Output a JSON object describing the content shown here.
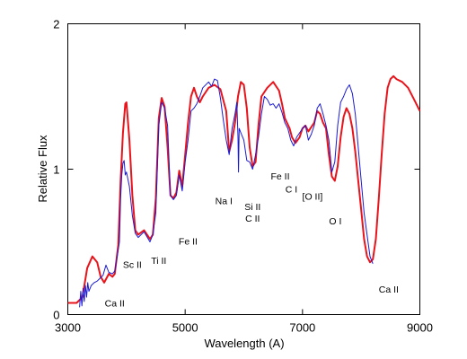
{
  "chart_data": {
    "type": "line",
    "title": "",
    "xlabel": "Wavelength (A)",
    "ylabel": "Relative Flux",
    "xlim": [
      3000,
      9000
    ],
    "ylim": [
      0,
      2
    ],
    "grid": false,
    "x_ticks": [
      {
        "value": 3000,
        "label": "3000"
      },
      {
        "value": 5000,
        "label": "5000"
      },
      {
        "value": 7000,
        "label": "7000"
      },
      {
        "value": 9000,
        "label": "9000"
      }
    ],
    "y_ticks": [
      {
        "value": 0,
        "label": "0"
      },
      {
        "value": 1,
        "label": "1"
      },
      {
        "value": 2,
        "label": "2"
      }
    ],
    "series": [
      {
        "color": "#e8141c",
        "points": [
          [
            3000,
            0.08
          ],
          [
            3150,
            0.08
          ],
          [
            3250,
            0.12
          ],
          [
            3330,
            0.32
          ],
          [
            3420,
            0.4
          ],
          [
            3500,
            0.36
          ],
          [
            3560,
            0.26
          ],
          [
            3620,
            0.22
          ],
          [
            3700,
            0.28
          ],
          [
            3760,
            0.26
          ],
          [
            3800,
            0.28
          ],
          [
            3860,
            0.48
          ],
          [
            3900,
            0.92
          ],
          [
            3940,
            1.25
          ],
          [
            3980,
            1.45
          ],
          [
            4000,
            1.46
          ],
          [
            4050,
            1.2
          ],
          [
            4100,
            0.82
          ],
          [
            4150,
            0.58
          ],
          [
            4200,
            0.55
          ],
          [
            4300,
            0.58
          ],
          [
            4400,
            0.52
          ],
          [
            4450,
            0.55
          ],
          [
            4500,
            0.8
          ],
          [
            4550,
            1.35
          ],
          [
            4600,
            1.49
          ],
          [
            4650,
            1.43
          ],
          [
            4700,
            1.15
          ],
          [
            4750,
            0.82
          ],
          [
            4800,
            0.8
          ],
          [
            4850,
            0.84
          ],
          [
            4900,
            0.99
          ],
          [
            4950,
            0.88
          ],
          [
            5000,
            1.1
          ],
          [
            5050,
            1.32
          ],
          [
            5100,
            1.5
          ],
          [
            5150,
            1.56
          ],
          [
            5200,
            1.5
          ],
          [
            5250,
            1.46
          ],
          [
            5300,
            1.5
          ],
          [
            5400,
            1.56
          ],
          [
            5500,
            1.58
          ],
          [
            5600,
            1.55
          ],
          [
            5700,
            1.4
          ],
          [
            5750,
            1.12
          ],
          [
            5800,
            1.2
          ],
          [
            5850,
            1.32
          ],
          [
            5900,
            1.5
          ],
          [
            5950,
            1.6
          ],
          [
            6000,
            1.58
          ],
          [
            6050,
            1.42
          ],
          [
            6100,
            1.15
          ],
          [
            6150,
            1.02
          ],
          [
            6200,
            1.05
          ],
          [
            6250,
            1.3
          ],
          [
            6300,
            1.5
          ],
          [
            6400,
            1.56
          ],
          [
            6500,
            1.6
          ],
          [
            6600,
            1.54
          ],
          [
            6650,
            1.45
          ],
          [
            6700,
            1.35
          ],
          [
            6780,
            1.28
          ],
          [
            6820,
            1.22
          ],
          [
            6880,
            1.18
          ],
          [
            6950,
            1.22
          ],
          [
            7000,
            1.28
          ],
          [
            7050,
            1.3
          ],
          [
            7100,
            1.26
          ],
          [
            7200,
            1.32
          ],
          [
            7250,
            1.4
          ],
          [
            7300,
            1.38
          ],
          [
            7350,
            1.32
          ],
          [
            7400,
            1.28
          ],
          [
            7450,
            1.1
          ],
          [
            7500,
            0.95
          ],
          [
            7550,
            0.92
          ],
          [
            7600,
            1.02
          ],
          [
            7650,
            1.22
          ],
          [
            7700,
            1.36
          ],
          [
            7750,
            1.42
          ],
          [
            7800,
            1.38
          ],
          [
            7850,
            1.28
          ],
          [
            7900,
            1.12
          ],
          [
            7950,
            0.92
          ],
          [
            8000,
            0.72
          ],
          [
            8050,
            0.52
          ],
          [
            8100,
            0.4
          ],
          [
            8150,
            0.36
          ],
          [
            8200,
            0.38
          ],
          [
            8250,
            0.52
          ],
          [
            8300,
            0.8
          ],
          [
            8350,
            1.1
          ],
          [
            8400,
            1.38
          ],
          [
            8450,
            1.56
          ],
          [
            8500,
            1.62
          ],
          [
            8550,
            1.64
          ],
          [
            8600,
            1.62
          ],
          [
            8700,
            1.6
          ],
          [
            8800,
            1.56
          ],
          [
            8900,
            1.48
          ],
          [
            9000,
            1.4
          ]
        ]
      },
      {
        "color": "#1a1ad4",
        "points": [
          [
            3200,
            0.05
          ],
          [
            3220,
            0.16
          ],
          [
            3240,
            0.06
          ],
          [
            3260,
            0.18
          ],
          [
            3280,
            0.09
          ],
          [
            3300,
            0.2
          ],
          [
            3320,
            0.12
          ],
          [
            3340,
            0.22
          ],
          [
            3360,
            0.16
          ],
          [
            3400,
            0.2
          ],
          [
            3450,
            0.22
          ],
          [
            3500,
            0.23
          ],
          [
            3550,
            0.25
          ],
          [
            3600,
            0.27
          ],
          [
            3650,
            0.34
          ],
          [
            3700,
            0.29
          ],
          [
            3760,
            0.28
          ],
          [
            3800,
            0.3
          ],
          [
            3850,
            0.42
          ],
          [
            3880,
            0.5
          ],
          [
            3900,
            0.8
          ],
          [
            3920,
            0.96
          ],
          [
            3940,
            1.04
          ],
          [
            3960,
            1.06
          ],
          [
            3980,
            0.96
          ],
          [
            4000,
            0.98
          ],
          [
            4050,
            0.88
          ],
          [
            4100,
            0.68
          ],
          [
            4150,
            0.56
          ],
          [
            4200,
            0.53
          ],
          [
            4300,
            0.57
          ],
          [
            4400,
            0.5
          ],
          [
            4450,
            0.55
          ],
          [
            4500,
            0.7
          ],
          [
            4550,
            1.3
          ],
          [
            4600,
            1.46
          ],
          [
            4650,
            1.42
          ],
          [
            4700,
            1.3
          ],
          [
            4750,
            0.82
          ],
          [
            4800,
            0.79
          ],
          [
            4850,
            0.82
          ],
          [
            4900,
            0.96
          ],
          [
            4950,
            0.85
          ],
          [
            5000,
            1.05
          ],
          [
            5050,
            1.2
          ],
          [
            5100,
            1.4
          ],
          [
            5150,
            1.42
          ],
          [
            5200,
            1.45
          ],
          [
            5250,
            1.5
          ],
          [
            5300,
            1.56
          ],
          [
            5400,
            1.6
          ],
          [
            5450,
            1.57
          ],
          [
            5500,
            1.62
          ],
          [
            5550,
            1.61
          ],
          [
            5600,
            1.49
          ],
          [
            5650,
            1.34
          ],
          [
            5700,
            1.2
          ],
          [
            5750,
            1.1
          ],
          [
            5800,
            1.28
          ],
          [
            5850,
            1.38
          ],
          [
            5880,
            1.46
          ],
          [
            5900,
            1.22
          ],
          [
            5910,
            0.98
          ],
          [
            5920,
            1.28
          ],
          [
            5950,
            1.25
          ],
          [
            6000,
            1.2
          ],
          [
            6050,
            1.06
          ],
          [
            6100,
            1.05
          ],
          [
            6150,
            1.0
          ],
          [
            6200,
            1.1
          ],
          [
            6250,
            1.22
          ],
          [
            6300,
            1.38
          ],
          [
            6350,
            1.5
          ],
          [
            6400,
            1.48
          ],
          [
            6450,
            1.44
          ],
          [
            6500,
            1.45
          ],
          [
            6550,
            1.42
          ],
          [
            6600,
            1.45
          ],
          [
            6650,
            1.39
          ],
          [
            6700,
            1.32
          ],
          [
            6750,
            1.28
          ],
          [
            6800,
            1.2
          ],
          [
            6850,
            1.16
          ],
          [
            6900,
            1.22
          ],
          [
            6950,
            1.25
          ],
          [
            7000,
            1.28
          ],
          [
            7050,
            1.3
          ],
          [
            7100,
            1.2
          ],
          [
            7150,
            1.24
          ],
          [
            7200,
            1.3
          ],
          [
            7250,
            1.42
          ],
          [
            7300,
            1.45
          ],
          [
            7350,
            1.38
          ],
          [
            7400,
            1.3
          ],
          [
            7450,
            1.2
          ],
          [
            7500,
            0.98
          ],
          [
            7550,
            1.05
          ],
          [
            7600,
            1.3
          ],
          [
            7650,
            1.46
          ],
          [
            7700,
            1.5
          ],
          [
            7750,
            1.55
          ],
          [
            7800,
            1.58
          ],
          [
            7850,
            1.52
          ],
          [
            7900,
            1.38
          ],
          [
            7950,
            1.15
          ],
          [
            8000,
            0.92
          ],
          [
            8050,
            0.7
          ],
          [
            8100,
            0.55
          ],
          [
            8150,
            0.4
          ],
          [
            8200,
            0.35
          ]
        ]
      }
    ],
    "annotations": [
      {
        "text": "Ca II",
        "x": 3800,
        "y": 0.055
      },
      {
        "text": "Sc II",
        "x": 4100,
        "y": 0.32
      },
      {
        "text": "Ti II",
        "x": 4550,
        "y": 0.35
      },
      {
        "text": "Fe II",
        "x": 5050,
        "y": 0.48
      },
      {
        "text": "Na I",
        "x": 5660,
        "y": 0.76
      },
      {
        "text": "Si II",
        "x": 6150,
        "y": 0.72
      },
      {
        "text": "C II",
        "x": 6150,
        "y": 0.64
      },
      {
        "text": "Fe II",
        "x": 6620,
        "y": 0.93
      },
      {
        "text": "C I",
        "x": 6810,
        "y": 0.84
      },
      {
        "text": "[O II]",
        "x": 7170,
        "y": 0.79
      },
      {
        "text": "O I",
        "x": 7560,
        "y": 0.62
      },
      {
        "text": "Ca II",
        "x": 8470,
        "y": 0.15
      }
    ]
  }
}
